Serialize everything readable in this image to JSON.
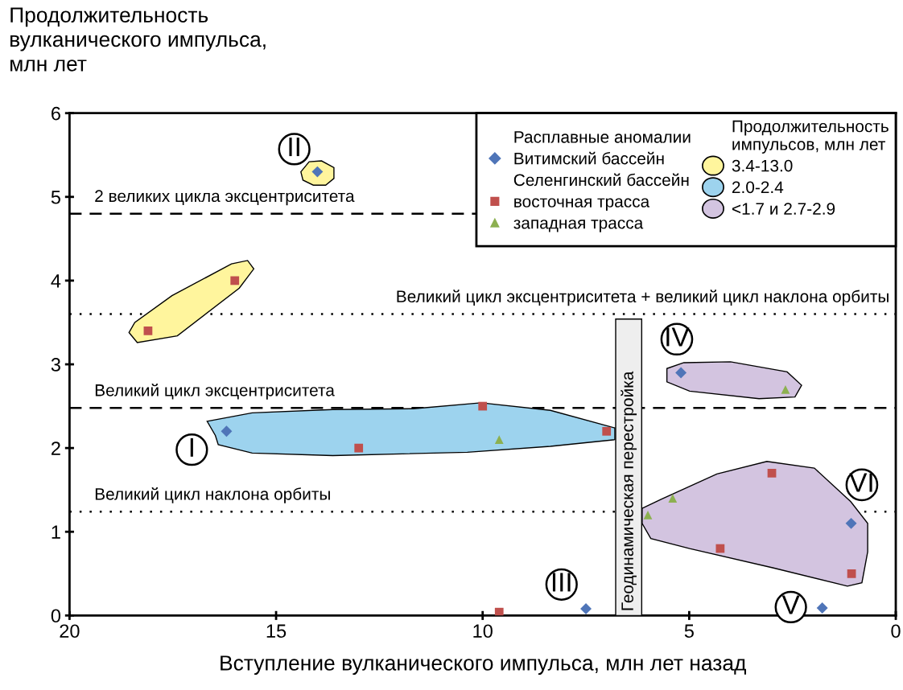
{
  "chart_data": {
    "type": "scatter",
    "ylabel": "Продолжительность\nвулканического импульса,\nмлн лет",
    "xlabel": "Вступление вулканического импульса, млн лет назад",
    "xlim": [
      20,
      0
    ],
    "xticks": [
      20,
      15,
      10,
      5,
      0
    ],
    "ylim": [
      0,
      6
    ],
    "yticks": [
      0,
      1,
      2,
      3,
      4,
      5,
      6
    ],
    "grid": false,
    "legend": "top right",
    "legend_title": "Расплавные аномалии",
    "series": [
      {
        "type": "area",
        "name": "3.4-13.0",
        "color": "#fff59d",
        "x": [
          14.4,
          14.2,
          13.9,
          13.6,
          13.6,
          13.8,
          14.1,
          14.35
        ],
        "values": [
          5.3,
          5.42,
          5.43,
          5.35,
          5.22,
          5.14,
          5.14,
          5.2
        ]
      },
      {
        "type": "area",
        "color": "#fff59d",
        "x": [
          18.56,
          18.36,
          17.39,
          15.89,
          15.54,
          15.69,
          16.08,
          17.52,
          18.42
        ],
        "values": [
          3.38,
          3.26,
          3.34,
          3.91,
          4.14,
          4.24,
          4.2,
          3.82,
          3.5
        ]
      },
      {
        "type": "area",
        "name": "2.0-2.4",
        "color": "#9dd3ee",
        "x": [
          16.67,
          15.58,
          13.63,
          11.68,
          10.04,
          8.36,
          6.8,
          6.8,
          8.36,
          10.37,
          13.63,
          15.58,
          16.4,
          16.47
        ],
        "values": [
          2.32,
          2.42,
          2.46,
          2.47,
          2.54,
          2.45,
          2.24,
          2.1,
          2.02,
          1.95,
          1.91,
          1.94,
          2.04,
          2.15
        ]
      },
      {
        "type": "area",
        "name": "<1.7 и 2.7-2.9",
        "color": "#d3c4e0",
        "x": [
          5.54,
          5.13,
          4.0,
          2.63,
          2.28,
          2.44,
          3.31,
          4.99,
          5.54
        ],
        "values": [
          2.95,
          3.02,
          3.03,
          2.91,
          2.75,
          2.61,
          2.59,
          2.68,
          2.79
        ]
      },
      {
        "type": "area",
        "color": "#d3c4e0",
        "x": [
          6.14,
          5.67,
          4.33,
          3.12,
          1.97,
          1.09,
          0.68,
          0.68,
          0.82,
          1.17,
          2.98,
          4.99,
          5.93,
          6.14
        ],
        "values": [
          1.28,
          1.39,
          1.69,
          1.84,
          1.76,
          1.36,
          1.1,
          0.76,
          0.39,
          0.35,
          0.57,
          0.8,
          0.92,
          1.1
        ]
      },
      {
        "name": "Витимский бассейн",
        "color": "#4f75b8",
        "marker": "diamond",
        "x": [
          14.0,
          16.2,
          7.5,
          5.2,
          1.08,
          1.78
        ],
        "values": [
          5.3,
          2.2,
          0.08,
          2.9,
          1.1,
          0.09
        ]
      },
      {
        "name": "восточная трасса",
        "color": "#c0504d",
        "marker": "square",
        "x": [
          18.1,
          16.0,
          13.0,
          10.0,
          7.0,
          9.6,
          3.0,
          4.25,
          1.07
        ],
        "values": [
          3.4,
          4.0,
          2.0,
          2.5,
          2.2,
          0.04,
          1.7,
          0.8,
          0.5
        ]
      },
      {
        "name": "западная трасса",
        "color": "#8cb050",
        "marker": "triangle",
        "x": [
          9.6,
          2.67,
          5.4,
          6.0
        ],
        "values": [
          2.1,
          2.7,
          1.4,
          1.2
        ]
      }
    ],
    "ref_lines": [
      {
        "axis": "y",
        "value": 4.8,
        "label": "2 великих цикла эксцентриситета",
        "line_style": "dashed"
      },
      {
        "axis": "y",
        "value": 3.6,
        "label": "Великий цикл эксцентриситета + великий цикл наклона орбиты",
        "line_style": "dotted"
      },
      {
        "axis": "y",
        "value": 2.48,
        "label": "Великий цикл эксцентриситета",
        "line_style": "dashed"
      },
      {
        "axis": "y",
        "value": 1.24,
        "label": "Великий цикл наклона орбиты",
        "line_style": "dotted"
      }
    ],
    "bands": [
      {
        "axis": "x",
        "from": 6.78,
        "to": 6.15,
        "label": "Геодинамическая перестройка",
        "color": "#eeeeee"
      }
    ],
    "annotations": [
      "Селенгинский бассейн",
      "Продолжительность\nимпульсов, млн лет",
      {
        "text": "I",
        "x": 17.04,
        "y": 1.98
      },
      {
        "text": "II",
        "x": 14.56,
        "y": 5.57
      },
      {
        "text": "III",
        "x": 8.09,
        "y": 0.37
      },
      {
        "text": "IV",
        "x": 5.3,
        "y": 3.3
      },
      {
        "text": "V",
        "x": 2.54,
        "y": 0.1
      },
      {
        "text": "VI",
        "x": 0.82,
        "y": 1.56
      }
    ]
  }
}
